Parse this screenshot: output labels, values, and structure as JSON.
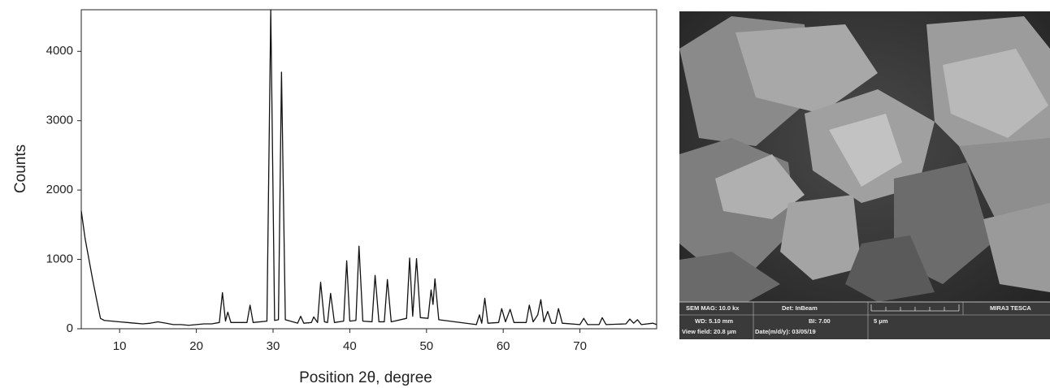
{
  "chart_data": {
    "type": "line",
    "x_label": "Position 2θ, degree",
    "y_label": "Counts",
    "color": "#111111",
    "x": [
      5,
      5.5,
      6,
      6.5,
      7,
      7.5,
      8,
      9,
      10,
      11,
      12,
      13,
      14,
      15,
      16,
      17,
      18,
      19,
      20,
      21,
      22,
      23,
      23.4,
      23.8,
      24.1,
      24.5,
      26.6,
      27,
      27.4,
      29.2,
      29.7,
      30.2,
      30.7,
      31.1,
      31.6,
      33.2,
      33.6,
      34,
      35,
      35.3,
      35.8,
      36.2,
      36.7,
      37.1,
      37.5,
      38,
      39.2,
      39.6,
      40,
      40.8,
      41.2,
      41.7,
      42.9,
      43.3,
      43.8,
      44.5,
      44.9,
      45.4,
      47.4,
      47.8,
      48.2,
      48.7,
      49.2,
      50.2,
      50.6,
      50.85,
      51.1,
      51.6,
      56.5,
      56.9,
      57.2,
      57.6,
      58,
      59.4,
      59.8,
      60.3,
      60.9,
      61.4,
      63,
      63.4,
      63.9,
      64.5,
      64.9,
      65.3,
      65.8,
      66.3,
      66.8,
      67.2,
      67.7,
      70,
      70.5,
      71,
      72.5,
      72.9,
      73.4,
      76,
      76.5,
      77,
      77.5,
      78,
      79.5,
      80
    ],
    "values": [
      1700,
      1300,
      1000,
      700,
      420,
      150,
      120,
      110,
      100,
      90,
      80,
      70,
      80,
      100,
      80,
      60,
      60,
      50,
      60,
      70,
      70,
      90,
      520,
      110,
      240,
      90,
      90,
      340,
      90,
      110,
      4600,
      120,
      130,
      3700,
      130,
      80,
      180,
      80,
      90,
      170,
      90,
      670,
      100,
      90,
      510,
      90,
      110,
      980,
      110,
      120,
      1190,
      110,
      100,
      770,
      100,
      100,
      710,
      100,
      150,
      1020,
      180,
      1010,
      160,
      150,
      560,
      350,
      720,
      130,
      60,
      200,
      80,
      440,
      80,
      90,
      290,
      100,
      280,
      90,
      90,
      340,
      100,
      200,
      420,
      100,
      250,
      80,
      80,
      290,
      80,
      60,
      150,
      60,
      60,
      160,
      60,
      70,
      140,
      80,
      130,
      60,
      80,
      60
    ],
    "xlim": [
      5,
      80
    ],
    "ylim": [
      0,
      4600
    ],
    "xticks": [
      10,
      20,
      30,
      40,
      50,
      60,
      70
    ],
    "yticks": [
      0,
      1000,
      2000,
      3000,
      4000
    ]
  },
  "image_panel": {
    "info_bar": [
      "SEM MAG: 10.0 kx",
      "Det: InBeam",
      "MIRA3 TESCA",
      "WD: 5.10 mm",
      "BI: 7.00",
      "5 μm",
      "View field: 20.8 μm",
      "Date(m/d/y): 03/05/19"
    ]
  }
}
